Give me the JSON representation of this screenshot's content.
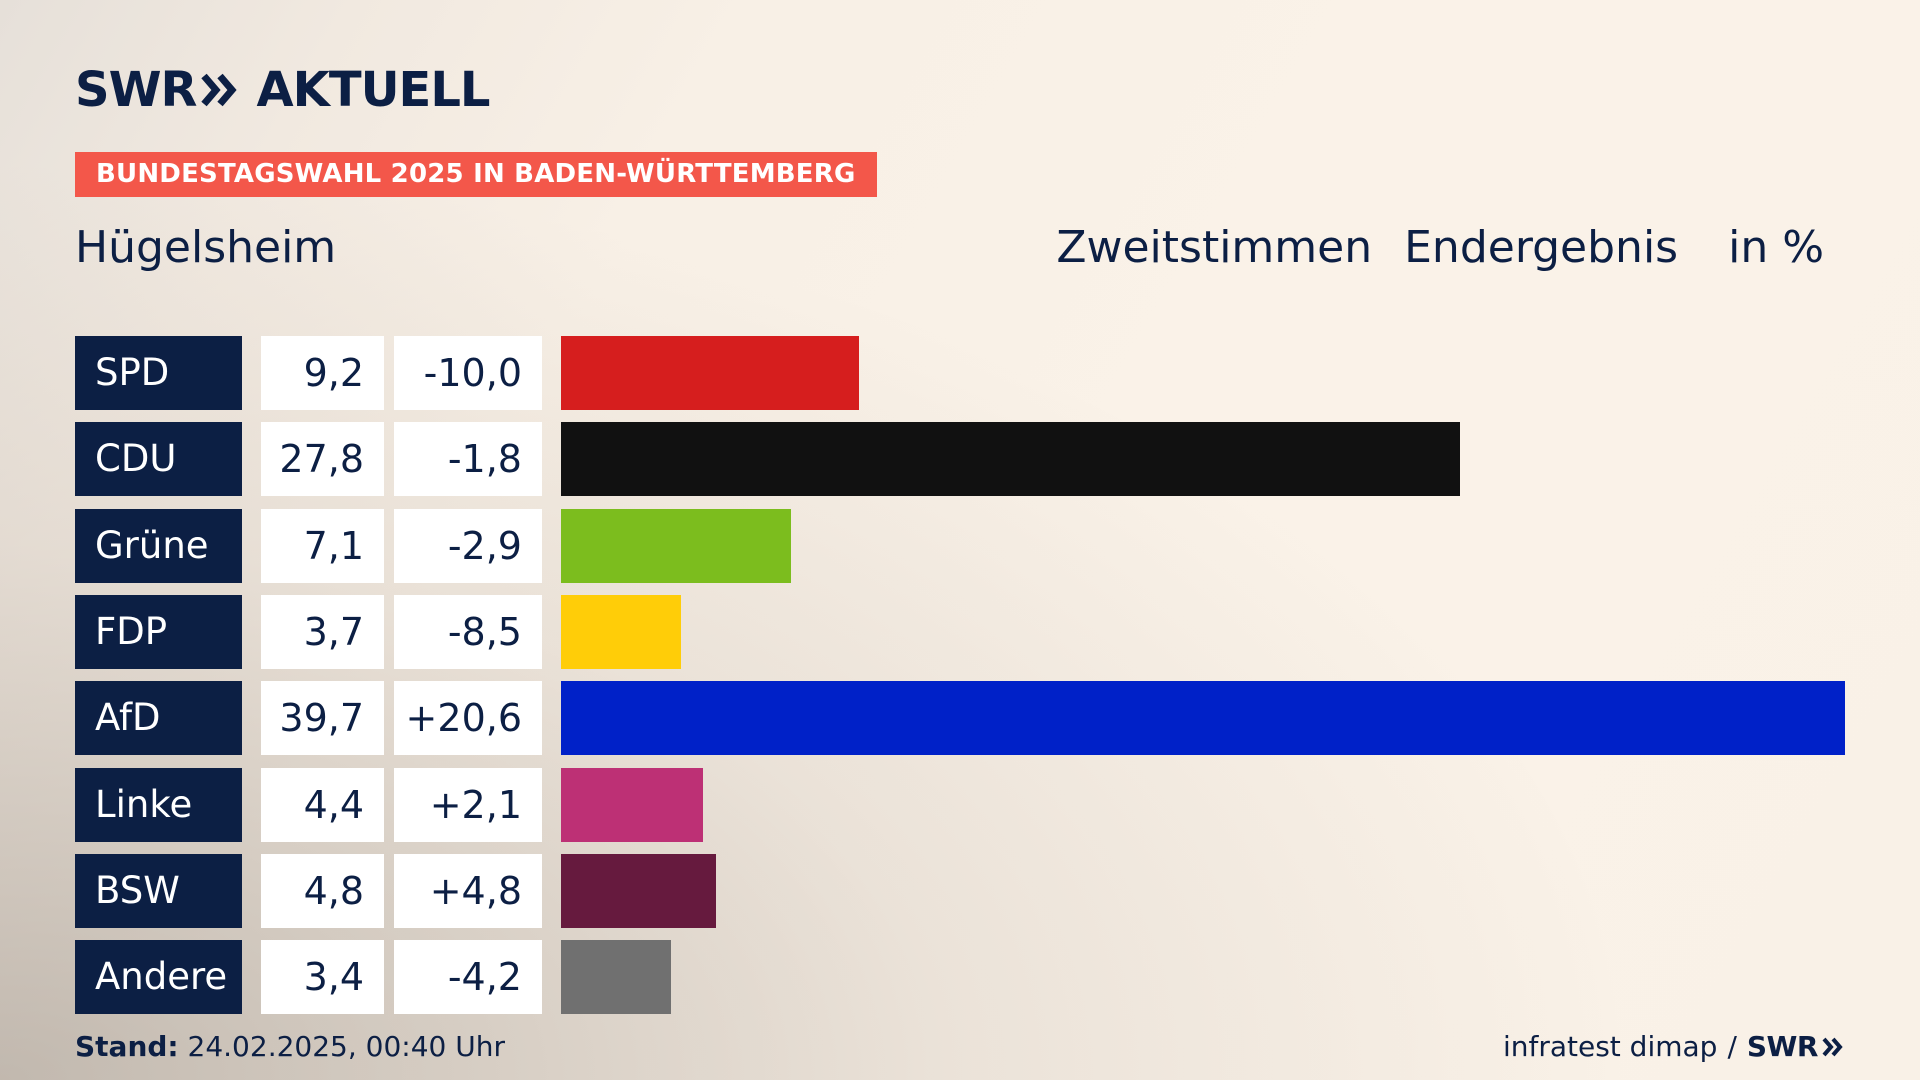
{
  "brand": {
    "logo_swr": "SWR",
    "logo_aktuell": "AKTUELL",
    "icon": "double-chevron-icon"
  },
  "badge": "BUNDESTAGSWAHL 2025 IN BADEN-WÜRTTEMBERG",
  "location": "Hügelsheim",
  "header": {
    "vote_type": "Zweitstimmen",
    "result_type": "Endergebnis",
    "unit": "in %"
  },
  "footer": {
    "stand_label": "Stand:",
    "stand_value": "24.02.2025, 00:40 Uhr",
    "source": "infratest dimap",
    "separator": "/",
    "source_logo": "SWR"
  },
  "chart_data": {
    "type": "bar",
    "orientation": "horizontal",
    "categories": [
      "SPD",
      "CDU",
      "Grüne",
      "FDP",
      "AfD",
      "Linke",
      "BSW",
      "Andere"
    ],
    "values": [
      9.2,
      27.8,
      7.1,
      3.7,
      39.7,
      4.4,
      4.8,
      3.4
    ],
    "value_labels": [
      "9,2",
      "27,8",
      "7,1",
      "3,7",
      "39,7",
      "4,4",
      "4,8",
      "3,4"
    ],
    "diff_labels": [
      "-10,0",
      "-1,8",
      "-2,9",
      "-8,5",
      "+20,6",
      "+2,1",
      "+4,8",
      "-4,2"
    ],
    "diffs": [
      -10.0,
      -1.8,
      -2.9,
      -8.5,
      20.6,
      2.1,
      4.8,
      -4.2
    ],
    "colors": [
      "#d61e1e",
      "#111111",
      "#7cbd1e",
      "#ffcd08",
      "#0021c8",
      "#bd3075",
      "#661a3e",
      "#707070"
    ],
    "xlim": [
      0,
      39.7
    ],
    "grid": false,
    "legend": "none"
  }
}
